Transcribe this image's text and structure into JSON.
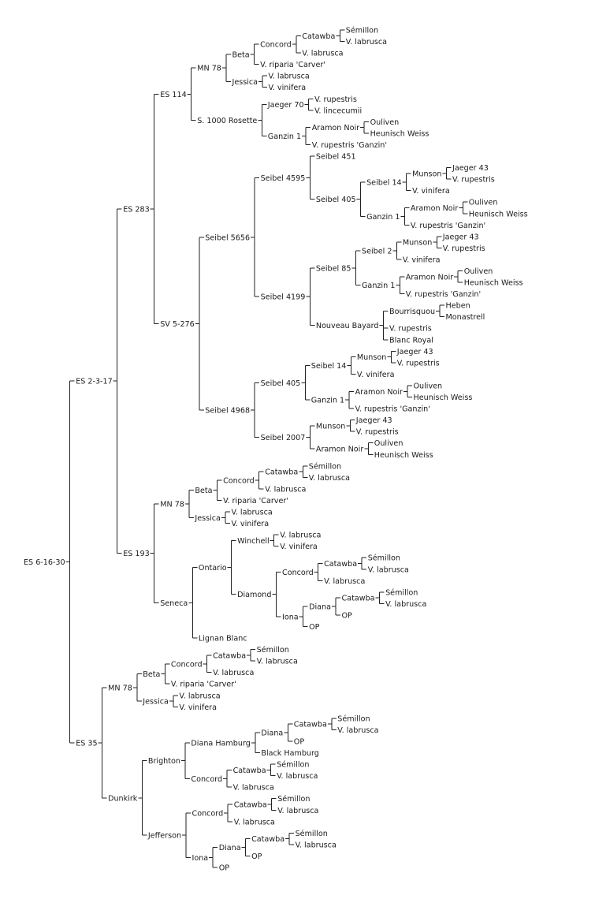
{
  "pedigree": {
    "name": "ES 6-16-30",
    "children": [
      {
        "name": "ES 2-3-17",
        "children": [
          {
            "name": "ES 283",
            "children": [
              {
                "name": "ES 114",
                "children": [
                  {
                    "name": "MN 78",
                    "children": [
                      {
                        "name": "Beta",
                        "children": [
                          {
                            "name": "Concord",
                            "children": [
                              {
                                "name": "Catawba",
                                "children": [
                                  {
                                    "name": "Sémillon"
                                  },
                                  {
                                    "name": "V. labrusca"
                                  }
                                ]
                              },
                              {
                                "name": "V. labrusca"
                              }
                            ]
                          },
                          {
                            "name": "V. riparia 'Carver'"
                          }
                        ]
                      },
                      {
                        "name": "Jessica",
                        "children": [
                          {
                            "name": "V. labrusca"
                          },
                          {
                            "name": "V. vinifera"
                          }
                        ]
                      }
                    ]
                  },
                  {
                    "name": "S. 1000 Rosette",
                    "children": [
                      {
                        "name": "Jaeger 70",
                        "children": [
                          {
                            "name": "V. rupestris"
                          },
                          {
                            "name": "V. lincecumii"
                          }
                        ]
                      },
                      {
                        "name": "Ganzin 1",
                        "children": [
                          {
                            "name": "Aramon Noir",
                            "children": [
                              {
                                "name": "Ouliven"
                              },
                              {
                                "name": "Heunisch Weiss"
                              }
                            ]
                          },
                          {
                            "name": "V. rupestris 'Ganzin'"
                          }
                        ]
                      }
                    ]
                  }
                ]
              },
              {
                "name": "SV 5-276",
                "children": [
                  {
                    "name": "Seibel 5656",
                    "children": [
                      {
                        "name": "Seibel 4595",
                        "children": [
                          {
                            "name": "Seibel 451"
                          },
                          {
                            "name": "Seibel 405",
                            "children": [
                              {
                                "name": "Seibel 14",
                                "children": [
                                  {
                                    "name": "Munson",
                                    "children": [
                                      {
                                        "name": "Jaeger 43"
                                      },
                                      {
                                        "name": "V. rupestris"
                                      }
                                    ]
                                  },
                                  {
                                    "name": "V. vinifera"
                                  }
                                ]
                              },
                              {
                                "name": "Ganzin 1",
                                "children": [
                                  {
                                    "name": "Aramon Noir",
                                    "children": [
                                      {
                                        "name": "Ouliven"
                                      },
                                      {
                                        "name": "Heunisch Weiss"
                                      }
                                    ]
                                  },
                                  {
                                    "name": "V. rupestris 'Ganzin'"
                                  }
                                ]
                              }
                            ]
                          }
                        ]
                      },
                      {
                        "name": "Seibel 4199",
                        "children": [
                          {
                            "name": "Seibel 85",
                            "children": [
                              {
                                "name": "Seibel 2",
                                "children": [
                                  {
                                    "name": "Munson",
                                    "children": [
                                      {
                                        "name": "Jaeger 43"
                                      },
                                      {
                                        "name": "V. rupestris"
                                      }
                                    ]
                                  },
                                  {
                                    "name": "V. vinifera"
                                  }
                                ]
                              },
                              {
                                "name": "Ganzin 1",
                                "children": [
                                  {
                                    "name": "Aramon Noir",
                                    "children": [
                                      {
                                        "name": "Ouliven"
                                      },
                                      {
                                        "name": "Heunisch Weiss"
                                      }
                                    ]
                                  },
                                  {
                                    "name": "V. rupestris 'Ganzin'"
                                  }
                                ]
                              }
                            ]
                          },
                          {
                            "name": "Nouveau Bayard",
                            "children": [
                              {
                                "name": "Bourrisquou",
                                "children": [
                                  {
                                    "name": "Heben"
                                  },
                                  {
                                    "name": "Monastrell"
                                  }
                                ]
                              },
                              {
                                "name": "V. rupestris"
                              },
                              {
                                "name": "Blanc Royal"
                              }
                            ]
                          }
                        ]
                      }
                    ]
                  },
                  {
                    "name": "Seibel 4968",
                    "children": [
                      {
                        "name": "Seibel 405",
                        "children": [
                          {
                            "name": "Seibel 14",
                            "children": [
                              {
                                "name": "Munson",
                                "children": [
                                  {
                                    "name": "Jaeger 43"
                                  },
                                  {
                                    "name": "V. rupestris"
                                  }
                                ]
                              },
                              {
                                "name": "V. vinifera"
                              }
                            ]
                          },
                          {
                            "name": "Ganzin 1",
                            "children": [
                              {
                                "name": "Aramon Noir",
                                "children": [
                                  {
                                    "name": "Ouliven"
                                  },
                                  {
                                    "name": "Heunisch Weiss"
                                  }
                                ]
                              },
                              {
                                "name": "V. rupestris 'Ganzin'"
                              }
                            ]
                          }
                        ]
                      },
                      {
                        "name": "Seibel 2007",
                        "children": [
                          {
                            "name": "Munson",
                            "children": [
                              {
                                "name": "Jaeger 43"
                              },
                              {
                                "name": "V. rupestris"
                              }
                            ]
                          },
                          {
                            "name": "Aramon Noir",
                            "children": [
                              {
                                "name": "Ouliven"
                              },
                              {
                                "name": "Heunisch Weiss"
                              }
                            ]
                          }
                        ]
                      }
                    ]
                  }
                ]
              }
            ]
          },
          {
            "name": "ES 193",
            "children": [
              {
                "name": "MN 78",
                "children": [
                  {
                    "name": "Beta",
                    "children": [
                      {
                        "name": "Concord",
                        "children": [
                          {
                            "name": "Catawba",
                            "children": [
                              {
                                "name": "Sémillon"
                              },
                              {
                                "name": "V. labrusca"
                              }
                            ]
                          },
                          {
                            "name": "V. labrusca"
                          }
                        ]
                      },
                      {
                        "name": "V. riparia 'Carver'"
                      }
                    ]
                  },
                  {
                    "name": "Jessica",
                    "children": [
                      {
                        "name": "V. labrusca"
                      },
                      {
                        "name": "V. vinifera"
                      }
                    ]
                  }
                ]
              },
              {
                "name": "Seneca",
                "children": [
                  {
                    "name": "Ontario",
                    "children": [
                      {
                        "name": "Winchell",
                        "children": [
                          {
                            "name": "V. labrusca"
                          },
                          {
                            "name": "V. vinifera"
                          }
                        ]
                      },
                      {
                        "name": "Diamond",
                        "children": [
                          {
                            "name": "Concord",
                            "children": [
                              {
                                "name": "Catawba",
                                "children": [
                                  {
                                    "name": "Sémillon"
                                  },
                                  {
                                    "name": "V. labrusca"
                                  }
                                ]
                              },
                              {
                                "name": "V. labrusca"
                              }
                            ]
                          },
                          {
                            "name": "Iona",
                            "children": [
                              {
                                "name": "Diana",
                                "children": [
                                  {
                                    "name": "Catawba",
                                    "children": [
                                      {
                                        "name": "Sémillon"
                                      },
                                      {
                                        "name": "V. labrusca"
                                      }
                                    ]
                                  },
                                  {
                                    "name": "OP"
                                  }
                                ]
                              },
                              {
                                "name": "OP"
                              }
                            ]
                          }
                        ]
                      }
                    ]
                  },
                  {
                    "name": "Lignan Blanc"
                  }
                ]
              }
            ]
          }
        ]
      },
      {
        "name": "ES 35",
        "children": [
          {
            "name": "MN 78",
            "children": [
              {
                "name": "Beta",
                "children": [
                  {
                    "name": "Concord",
                    "children": [
                      {
                        "name": "Catawba",
                        "children": [
                          {
                            "name": "Sémillon"
                          },
                          {
                            "name": "V. labrusca"
                          }
                        ]
                      },
                      {
                        "name": "V. labrusca"
                      }
                    ]
                  },
                  {
                    "name": "V. riparia 'Carver'"
                  }
                ]
              },
              {
                "name": "Jessica",
                "children": [
                  {
                    "name": "V. labrusca"
                  },
                  {
                    "name": "V. vinifera"
                  }
                ]
              }
            ]
          },
          {
            "name": "Dunkirk",
            "children": [
              {
                "name": "Brighton",
                "children": [
                  {
                    "name": "Diana Hamburg",
                    "children": [
                      {
                        "name": "Diana",
                        "children": [
                          {
                            "name": "Catawba",
                            "children": [
                              {
                                "name": "Sémillon"
                              },
                              {
                                "name": "V. labrusca"
                              }
                            ]
                          },
                          {
                            "name": "OP"
                          }
                        ]
                      },
                      {
                        "name": "Black Hamburg"
                      }
                    ]
                  },
                  {
                    "name": "Concord",
                    "children": [
                      {
                        "name": "Catawba",
                        "children": [
                          {
                            "name": "Sémillon"
                          },
                          {
                            "name": "V. labrusca"
                          }
                        ]
                      },
                      {
                        "name": "V. labrusca"
                      }
                    ]
                  }
                ]
              },
              {
                "name": "Jefferson",
                "children": [
                  {
                    "name": "Concord",
                    "children": [
                      {
                        "name": "Catawba",
                        "children": [
                          {
                            "name": "Sémillon"
                          },
                          {
                            "name": "V. labrusca"
                          }
                        ]
                      },
                      {
                        "name": "V. labrusca"
                      }
                    ]
                  },
                  {
                    "name": "Iona",
                    "children": [
                      {
                        "name": "Diana",
                        "children": [
                          {
                            "name": "Catawba",
                            "children": [
                              {
                                "name": "Sémillon"
                              },
                              {
                                "name": "V. labrusca"
                              }
                            ]
                          },
                          {
                            "name": "OP"
                          }
                        ]
                      },
                      {
                        "name": "OP"
                      }
                    ]
                  }
                ]
              }
            ]
          }
        ]
      }
    ]
  }
}
